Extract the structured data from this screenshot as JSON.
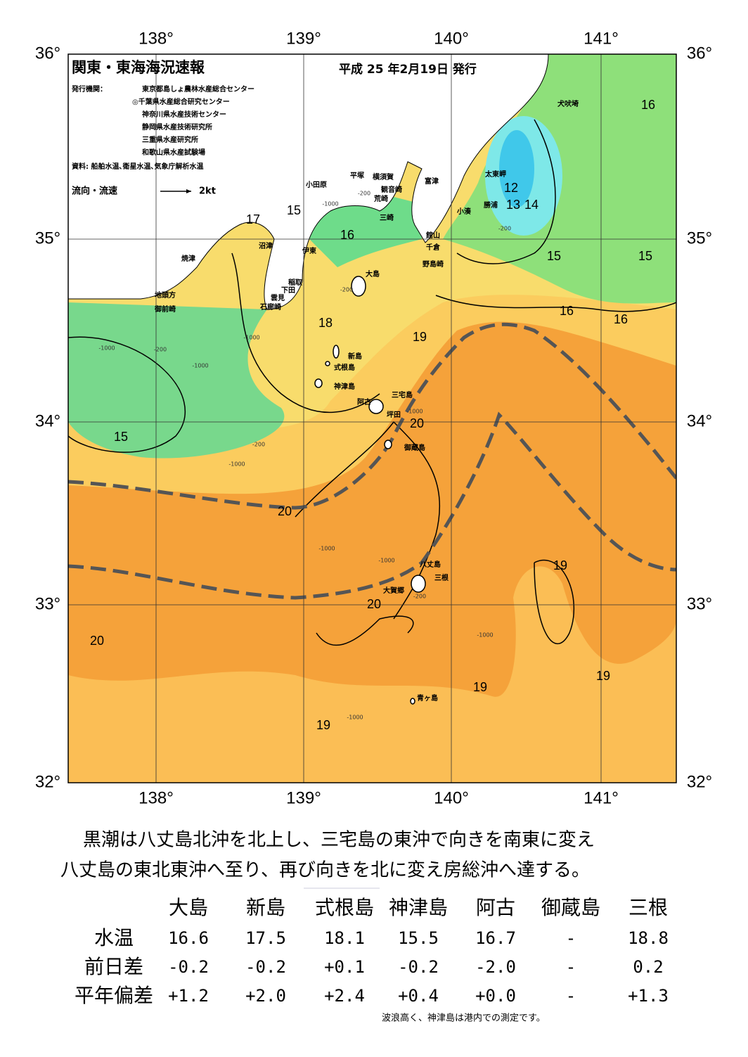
{
  "header": {
    "title": "関東・東海海況速報",
    "date": "平成 25 年2月19日 発行"
  },
  "issuers": {
    "label": "発行機関：",
    "orgs": [
      "東京都島しょ農林水産総合センター",
      "◎千葉県水産総合研究センター",
      "神奈川県水産技術センター",
      "静岡県水産技術研究所",
      "三重県水産研究所",
      "和歌山県水産試験場"
    ]
  },
  "source": "資料: 船舶水温､衛星水温､気象庁解析水温",
  "legend": {
    "label": "流向・流速",
    "speed": "2kt"
  },
  "map": {
    "longitude_labels": [
      "138°",
      "139°",
      "140°",
      "141°"
    ],
    "latitude_labels": [
      "36°",
      "35°",
      "34°",
      "33°",
      "32°"
    ],
    "places": [
      "犬吠埼",
      "太東岬",
      "勝浦",
      "小湊",
      "富津",
      "横須賀",
      "観音崎",
      "平塚",
      "小田原",
      "荒崎",
      "三崎",
      "館山",
      "千倉",
      "野島崎",
      "大島",
      "沼津",
      "伊東",
      "稲取",
      "下田",
      "雲見",
      "石廊崎",
      "焼津",
      "地頭方",
      "御前崎",
      "新島",
      "式根島",
      "神津島",
      "阿古",
      "三宅島",
      "坪田",
      "御蔵島",
      "八丈島",
      "三根",
      "大賀郷",
      "青ヶ島"
    ],
    "contour_labels": [
      "16",
      "12",
      "13",
      "14",
      "15",
      "15",
      "16",
      "16",
      "17",
      "15",
      "16",
      "18",
      "19",
      "20",
      "15",
      "20",
      "19",
      "20",
      "20",
      "19",
      "19",
      "19"
    ],
    "depth_labels": [
      "-1000",
      "-200",
      "-200",
      "-1000",
      "-1000",
      "-200",
      "-1000",
      "-200",
      "-1000",
      "-1000",
      "-1000",
      "-200",
      "-1000",
      "-1000",
      "-200",
      "-1000"
    ]
  },
  "description": [
    "黒潮は八丈島北沖を北上し、三宅島の東沖で向きを南東に変え",
    "八丈島の東北東沖へ至り、再び向きを北に変え房総沖へ達する。"
  ],
  "table": {
    "columns": [
      "大島",
      "新島",
      "式根島",
      "神津島",
      "阿古",
      "御蔵島",
      "三根"
    ],
    "rows": [
      [
        "水温",
        "16.6",
        "17.5",
        "18.1",
        "15.5",
        "16.7",
        "-",
        "18.8"
      ],
      [
        "前日差",
        "-0.2",
        "-0.2",
        "+0.1",
        "-0.2",
        "-2.0",
        "-",
        "0.2"
      ],
      [
        "平年偏差",
        "+1.2",
        "+2.0",
        "+2.4",
        "+0.4",
        "+0.0",
        "-",
        "+1.3"
      ]
    ]
  },
  "note": "波浪高く、神津島は港内での測定です。"
}
